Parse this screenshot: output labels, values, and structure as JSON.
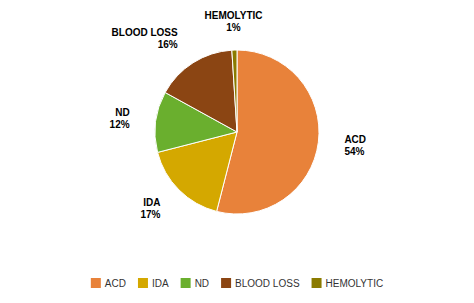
{
  "chart_data": {
    "type": "pie",
    "categories": [
      "ACD",
      "IDA",
      "ND",
      "BLOOD LOSS",
      "HEMOLYTIC"
    ],
    "values": [
      54,
      17,
      12,
      16,
      1
    ],
    "value_labels": [
      "54%",
      "17%",
      "12%",
      "16%",
      "1%"
    ],
    "colors": [
      "#E8823A",
      "#D4A800",
      "#6AAF2E",
      "#8B4513",
      "#8B7B00"
    ],
    "data_labels": true,
    "legend": "bottom"
  }
}
